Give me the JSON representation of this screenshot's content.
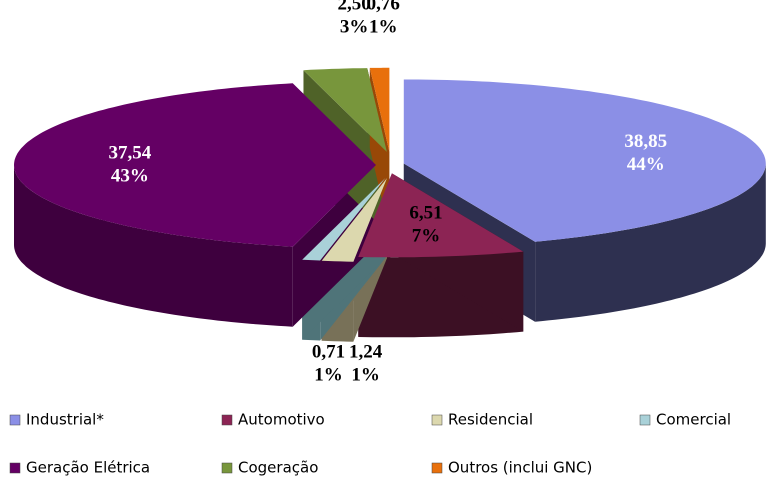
{
  "chart_data": {
    "type": "pie3d",
    "categories": [
      "Industrial*",
      "Automotivo",
      "Residencial",
      "Comercial",
      "Geração Elétrica",
      "Cogeração",
      "Outros (inclui GNC)"
    ],
    "values": [
      38.85,
      6.51,
      1.24,
      0.71,
      37.54,
      2.5,
      0.76
    ],
    "value_labels": [
      "38,85",
      "6,51",
      "1,24",
      "0,71",
      "37,54",
      "2,50",
      "0,76"
    ],
    "percents": [
      44,
      7,
      1,
      1,
      43,
      3,
      1
    ],
    "percent_labels": [
      "44%",
      "7%",
      "1%",
      "1%",
      "43%",
      "3%",
      "1%"
    ],
    "colors": [
      "#8b8fe6",
      "#8c2454",
      "#dcd8ae",
      "#a9d1d8",
      "#640064",
      "#78963c",
      "#e8700c"
    ],
    "side_colors": [
      "#2e3050",
      "#3c1024",
      "#787158",
      "#4f7479",
      "#3e003e",
      "#4f6228",
      "#984807"
    ],
    "label_colors": [
      "#ffffff",
      "#000000",
      "#000000",
      "#000000",
      "#ffffff",
      "#000000",
      "#000000"
    ]
  }
}
